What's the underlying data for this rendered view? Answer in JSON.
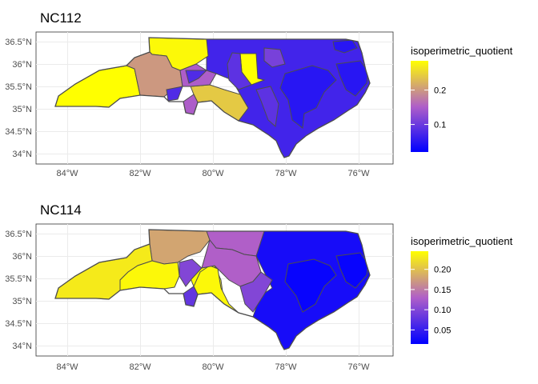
{
  "panels": [
    {
      "title": "NC112",
      "x_ticks": [
        "84°W",
        "82°W",
        "80°W",
        "78°W",
        "76°W"
      ],
      "y_ticks": [
        "36.5°N",
        "36°N",
        "35.5°N",
        "35°N",
        "34.5°N",
        "34°N"
      ],
      "legend": {
        "title": "isoperimetric_quotient",
        "min": 0.02,
        "max": 0.285,
        "ticks": [
          {
            "value": 0.1,
            "label": "0.1"
          },
          {
            "value": 0.2,
            "label": "0.2"
          }
        ]
      },
      "colors": {
        "low": "#0000ff",
        "mid": "#b05fc8",
        "high": "#ffff00"
      }
    },
    {
      "title": "NC114",
      "x_ticks": [
        "84°W",
        "82°W",
        "80°W",
        "78°W",
        "76°W"
      ],
      "y_ticks": [
        "36.5°N",
        "36°N",
        "35.5°N",
        "35°N",
        "34.5°N",
        "34°N"
      ],
      "legend": {
        "title": "isoperimetric_quotient",
        "min": 0.015,
        "max": 0.245,
        "ticks": [
          {
            "value": 0.05,
            "label": "0.05"
          },
          {
            "value": 0.1,
            "label": "0.10"
          },
          {
            "value": 0.15,
            "label": "0.15"
          },
          {
            "value": 0.2,
            "label": "0.20"
          }
        ]
      },
      "colors": {
        "low": "#0000ff",
        "mid": "#b05fc8",
        "high": "#ffff00"
      }
    }
  ]
}
